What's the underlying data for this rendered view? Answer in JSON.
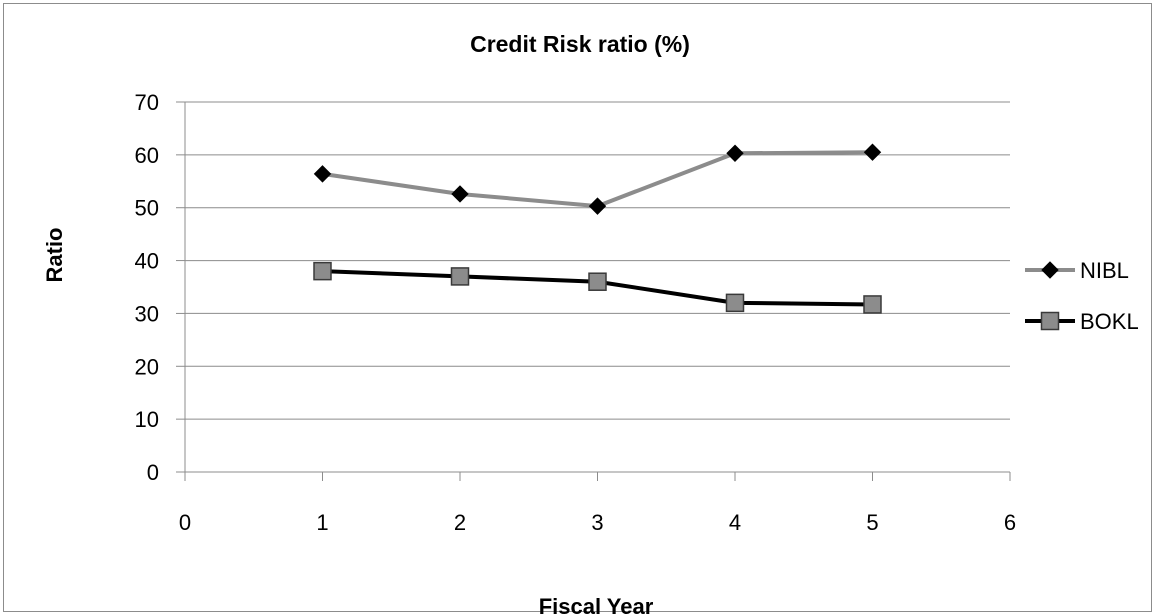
{
  "chart_data": {
    "type": "line",
    "title": "Credit Risk ratio (%)",
    "xlabel": "Fiscal Year",
    "ylabel": "Ratio",
    "xlim": [
      0,
      6
    ],
    "ylim": [
      0,
      70
    ],
    "xticks": [
      "0",
      "1",
      "2",
      "3",
      "4",
      "5",
      "6"
    ],
    "yticks": [
      "0",
      "10",
      "20",
      "30",
      "40",
      "50",
      "60",
      "70"
    ],
    "grid": "horizontal",
    "legend_position": "right",
    "x": [
      1,
      2,
      3,
      4,
      5
    ],
    "series": [
      {
        "name": "NIBL",
        "values": [
          56.4,
          52.6,
          50.3,
          60.3,
          60.5
        ],
        "color": "#8c8c8c",
        "marker": "diamond",
        "marker_color": "#000000"
      },
      {
        "name": "BOKL",
        "values": [
          38.0,
          37.0,
          36.0,
          32.0,
          31.7
        ],
        "color": "#000000",
        "marker": "square",
        "marker_color": "#8c8c8c"
      }
    ]
  }
}
